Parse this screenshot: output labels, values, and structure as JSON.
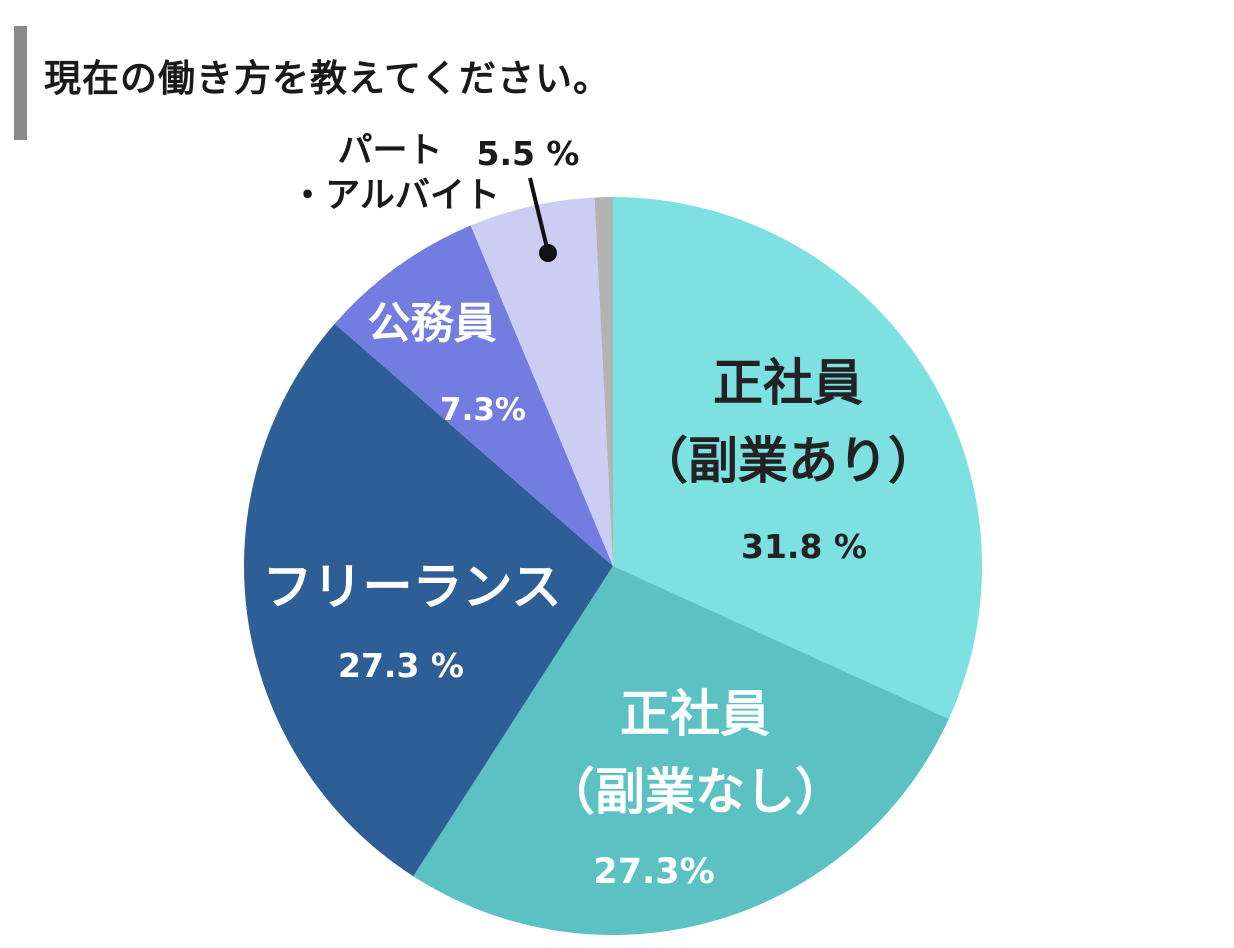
{
  "title": "現在の働き方を教えてください。",
  "chart_data": {
    "type": "pie",
    "slices": [
      {
        "label_lines": [
          "正社員",
          "（副業あり）"
        ],
        "value_text": "31.8 %",
        "value": 31.8,
        "color": "#7ee1e1",
        "text_color": "#222222"
      },
      {
        "label_lines": [
          "正社員",
          "（副業なし）"
        ],
        "value_text": "27.3%",
        "value": 27.3,
        "color": "#5cc1c2",
        "text_color": "#ffffff"
      },
      {
        "label_lines": [
          "フリーランス"
        ],
        "value_text": "27.3 %",
        "value": 27.3,
        "color": "#2e5e96",
        "text_color": "#ffffff"
      },
      {
        "label_lines": [
          "公務員"
        ],
        "value_text": "7.3%",
        "value": 7.3,
        "color": "#737ce0",
        "text_color": "#ffffff"
      },
      {
        "label_lines": [
          "パート",
          "・アルバイト"
        ],
        "value_text": "5.5 %",
        "value": 5.5,
        "color": "#cccdf3",
        "text_color": "#1a1a1a"
      },
      {
        "label_lines": [],
        "value_text": "",
        "value": 0.8,
        "color": "#b3b3b3",
        "text_color": "#1a1a1a"
      }
    ]
  }
}
